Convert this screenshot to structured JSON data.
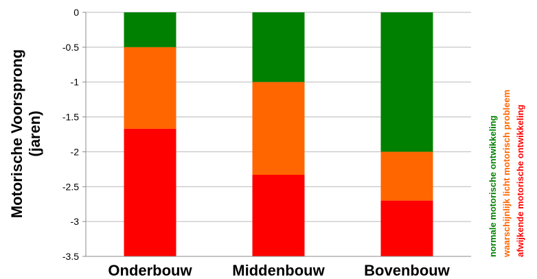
{
  "chart_data": {
    "type": "bar",
    "stacked": true,
    "categories": [
      "Onderbouw",
      "Middenbouw",
      "Bovenbouw"
    ],
    "series": [
      {
        "name": "normale motorische ontwikkeling",
        "color": "#008000",
        "values": [
          -0.5,
          -1.0,
          -2.0
        ]
      },
      {
        "name": "waarschijnlijk licht motorisch probleem",
        "color": "#FF6600",
        "values": [
          -1.17,
          -1.33,
          -0.7
        ]
      },
      {
        "name": "afwijkende motorische ontwikkeling",
        "color": "#FF0000",
        "values": [
          -1.83,
          -1.17,
          -0.8
        ]
      }
    ],
    "ylabel_line1": "Motorische Voorsprong",
    "ylabel_line2": "(jaren)",
    "ylim": [
      -3.5,
      0
    ],
    "yticks": [
      "0",
      "-0.5",
      "-1",
      "-1.5",
      "-2",
      "-2.5",
      "-3",
      "-3.5"
    ],
    "grid": true,
    "legend_position": "right, rotated vertical"
  }
}
